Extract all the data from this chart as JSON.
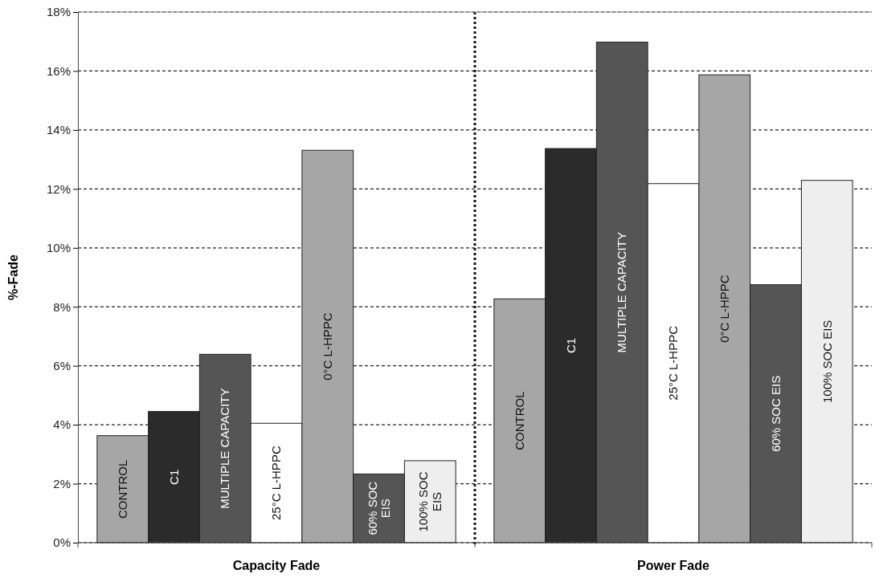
{
  "chart_data": {
    "type": "bar",
    "ylabel": "%-Fade",
    "categories": [
      "Capacity Fade",
      "Power Fade"
    ],
    "series": [
      {
        "name": "CONTROL",
        "color": "#a6a6a6",
        "values": [
          3.63,
          8.27
        ]
      },
      {
        "name": "C1",
        "color": "#2b2b2b",
        "values": [
          4.45,
          13.37
        ]
      },
      {
        "name": "MULTIPLE CAPACITY",
        "color": "#555555",
        "values": [
          6.39,
          16.98
        ]
      },
      {
        "name": "25°C L-HPPC",
        "color": "#ffffff",
        "values": [
          4.05,
          12.18
        ]
      },
      {
        "name": "0°C L-HPPC",
        "color": "#a6a6a6",
        "values": [
          13.31,
          15.87
        ]
      },
      {
        "name": "60% SOC EIS",
        "color": "#555555",
        "values": [
          2.33,
          8.75
        ]
      },
      {
        "name": "100% SOC EIS",
        "color": "#eeeeee",
        "values": [
          2.78,
          12.29
        ]
      }
    ],
    "ylim": [
      0,
      18
    ],
    "yticks": [
      {
        "value": 0,
        "label": "0%"
      },
      {
        "value": 2,
        "label": "2%"
      },
      {
        "value": 4,
        "label": "4%"
      },
      {
        "value": 6,
        "label": "6%"
      },
      {
        "value": 8,
        "label": "8%"
      },
      {
        "value": 10,
        "label": "10%"
      },
      {
        "value": 12,
        "label": "12%"
      },
      {
        "value": 14,
        "label": "14%"
      },
      {
        "value": 16,
        "label": "16%"
      },
      {
        "value": 18,
        "label": "18%"
      }
    ],
    "grid": "y"
  }
}
